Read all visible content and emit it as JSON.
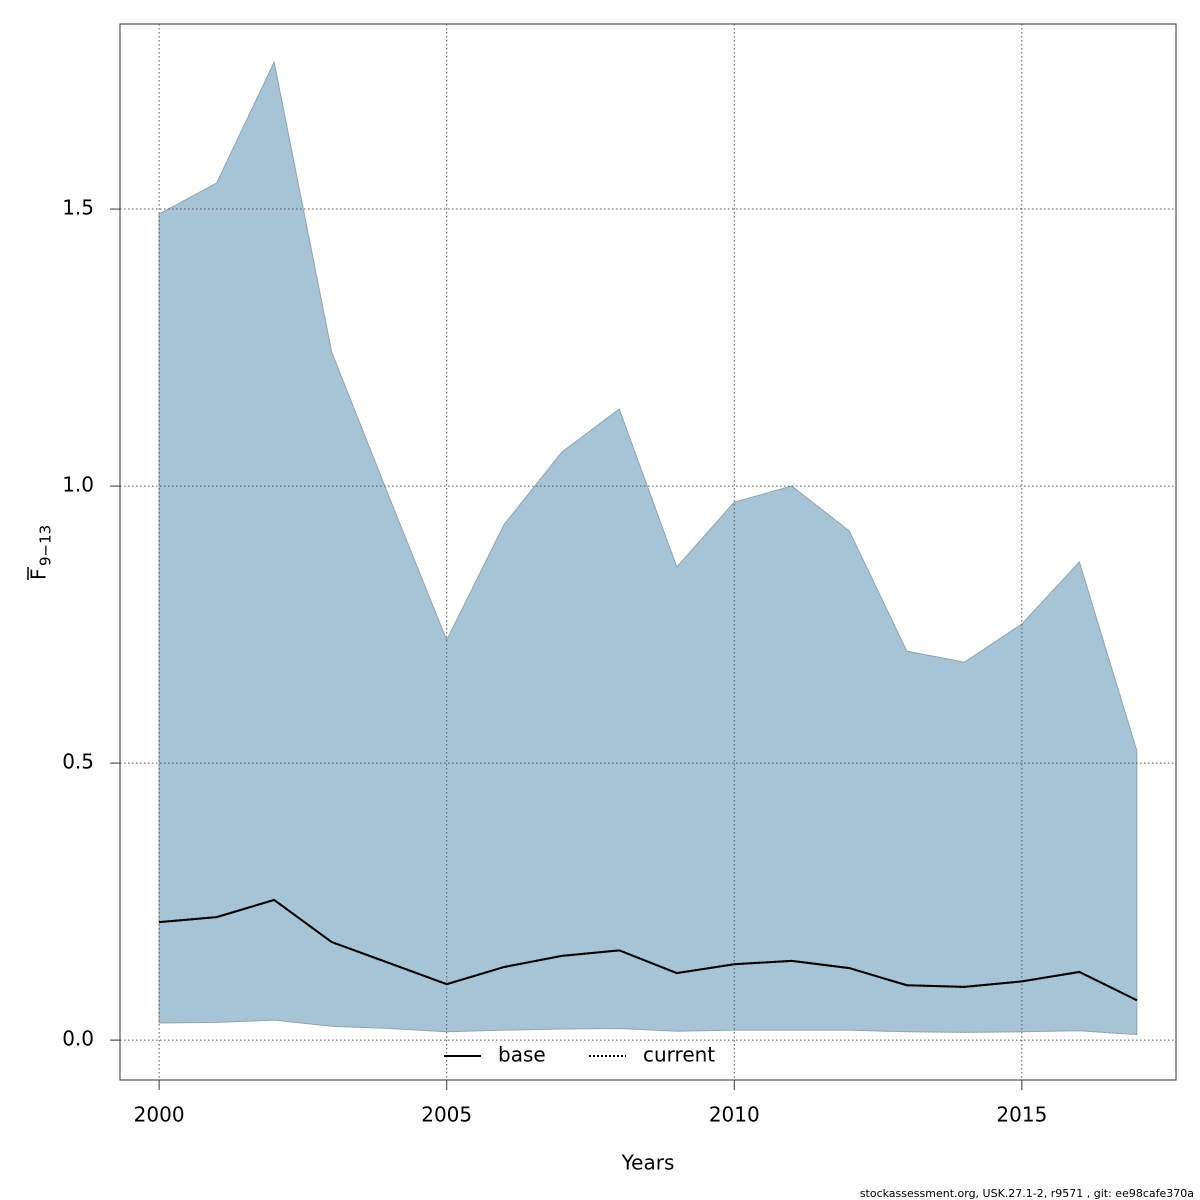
{
  "chart_data": {
    "type": "line",
    "xlabel": "Years",
    "ylabel": "F",
    "ylabel_subscript": "9−13",
    "footer": "stockassessment.org, USK.27.1-2, r9571 , git: ee98cafe370a",
    "x": [
      2000,
      2001,
      2002,
      2003,
      2004,
      2005,
      2006,
      2007,
      2008,
      2009,
      2010,
      2011,
      2012,
      2013,
      2014,
      2015,
      2016,
      2017
    ],
    "band": {
      "color": "#a6c4d5",
      "upper": [
        1.491,
        1.547,
        1.765,
        1.242,
        0.98,
        0.722,
        0.931,
        1.061,
        1.139,
        0.854,
        0.971,
        1.0,
        0.919,
        0.702,
        0.682,
        0.751,
        0.863,
        0.522
      ],
      "lower": [
        0.031,
        0.032,
        0.036,
        0.025,
        0.021,
        0.015,
        0.018,
        0.02,
        0.021,
        0.016,
        0.018,
        0.018,
        0.018,
        0.015,
        0.014,
        0.015,
        0.017,
        0.01
      ]
    },
    "series": [
      {
        "name": "base",
        "color": "#000000",
        "dash": "solid",
        "values": [
          0.213,
          0.222,
          0.253,
          0.177,
          0.139,
          0.101,
          0.132,
          0.152,
          0.162,
          0.121,
          0.137,
          0.143,
          0.13,
          0.099,
          0.096,
          0.106,
          0.123,
          0.072
        ]
      },
      {
        "name": "current",
        "color": "#000000",
        "dash": "dotted",
        "values": [
          0.213,
          0.222,
          0.253,
          0.177,
          0.139,
          0.101,
          0.132,
          0.152,
          0.162,
          0.121,
          0.137,
          0.143,
          0.13,
          0.099,
          0.096,
          0.106,
          0.123,
          0.072
        ]
      }
    ],
    "xlim": [
      1999.32,
      2017.68
    ],
    "ylim": [
      -0.072,
      1.834
    ],
    "xticks": [
      2000,
      2005,
      2010,
      2015
    ],
    "yticks": [
      {
        "value": 0,
        "label": "0.0"
      },
      0.5,
      {
        "value": 1,
        "label": "1.0"
      },
      1.5
    ],
    "grid": true,
    "legend": "bottom"
  }
}
